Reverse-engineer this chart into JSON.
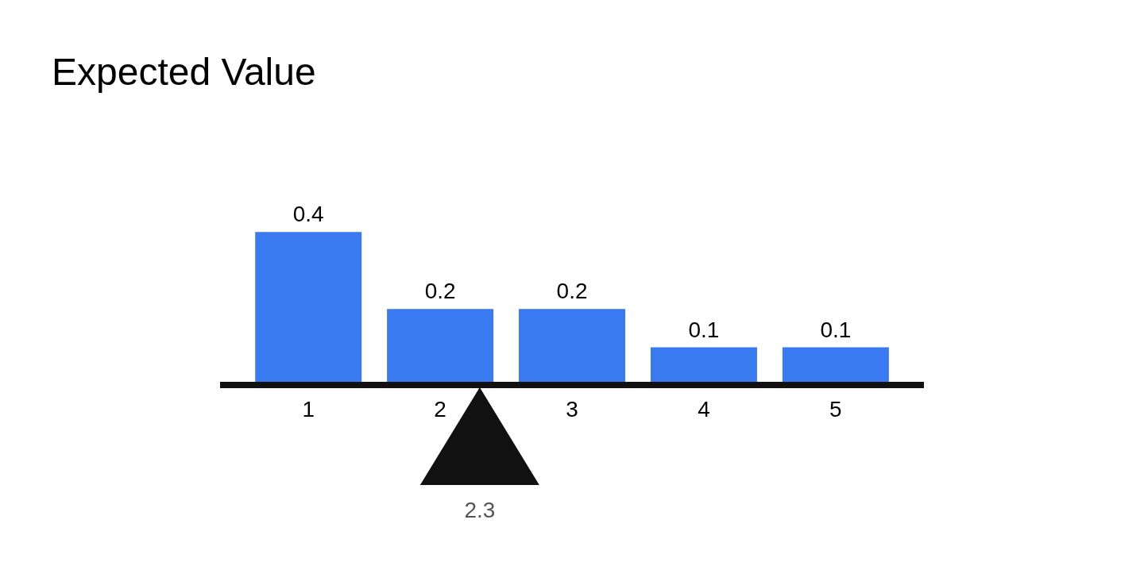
{
  "chart_data": {
    "type": "bar",
    "title": "Expected Value",
    "x": [
      1,
      2,
      3,
      4,
      5
    ],
    "xlim": [
      0.33,
      5.67
    ],
    "xticks": [
      1,
      2,
      3,
      4,
      5
    ],
    "values": [
      0.4,
      0.2,
      0.2,
      0.1,
      0.1
    ],
    "color": "#3a7af0",
    "data_labels": true,
    "grid": false,
    "legend": false,
    "tick_labels": "x",
    "ref_lines": [
      {
        "axis": "x",
        "value": 2.3,
        "label": "2.3"
      }
    ]
  }
}
